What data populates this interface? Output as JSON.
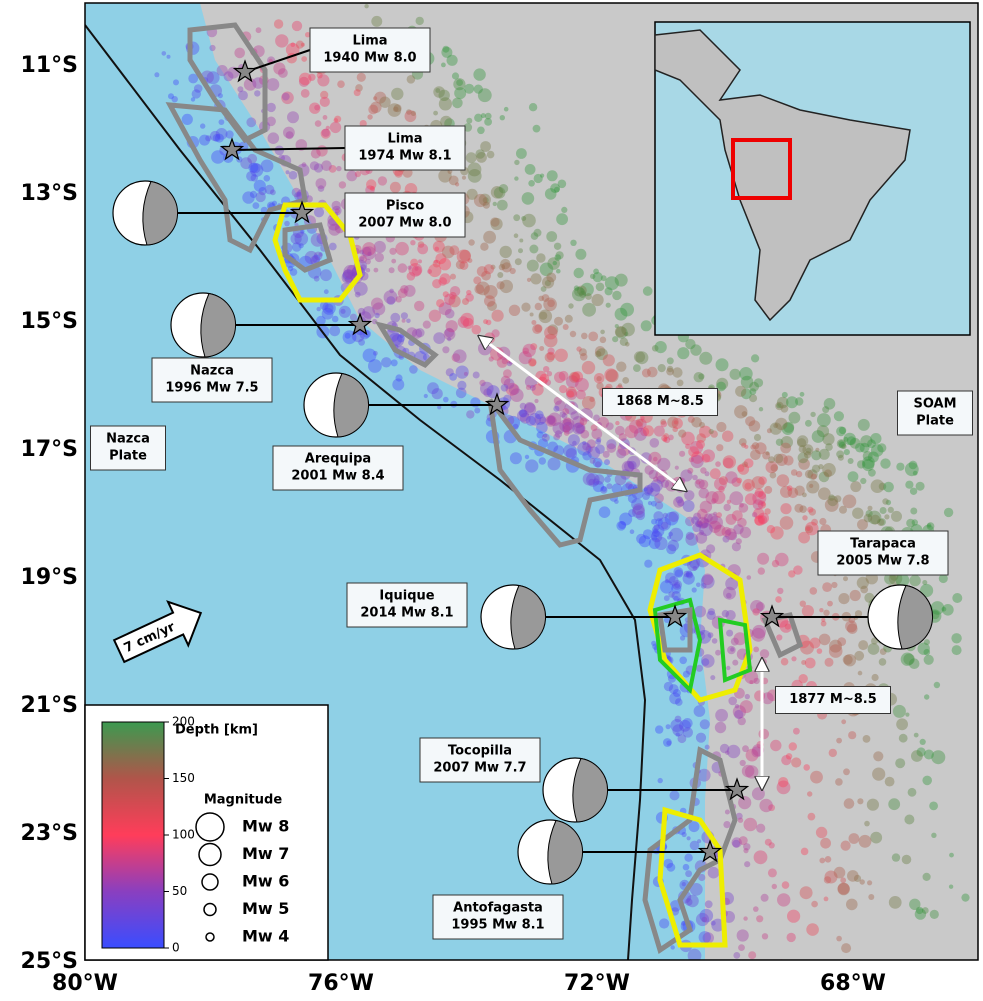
{
  "map": {
    "y_axis_labels": [
      "11°S",
      "13°S",
      "15°S",
      "17°S",
      "19°S",
      "21°S",
      "23°S",
      "25°S"
    ],
    "x_axis_labels": [
      "80°W",
      "76°W",
      "72°W",
      "68°W"
    ],
    "plates": [
      [
        "Nazca",
        "Plate"
      ],
      [
        "SOAM",
        "Plate"
      ]
    ],
    "events": [
      {
        "lines": [
          "Lima",
          "1940 Mw 8.0"
        ]
      },
      {
        "lines": [
          "Lima",
          "1974 Mw 8.1"
        ]
      },
      {
        "lines": [
          "Pisco",
          "2007 Mw 8.0"
        ]
      },
      {
        "lines": [
          "Nazca",
          "1996 Mw 7.5"
        ]
      },
      {
        "lines": [
          "Arequipa",
          "2001 Mw 8.4"
        ]
      },
      {
        "lines": [
          "Iquique",
          "2014 Mw 8.1"
        ]
      },
      {
        "lines": [
          "Tarapaca",
          "2005 Mw 7.8"
        ]
      },
      {
        "lines": [
          "Tocopilla",
          "2007 Mw 7.7"
        ]
      },
      {
        "lines": [
          "Antofagasta",
          "1995 Mw 8.1"
        ]
      }
    ],
    "historical": [
      "1868 M~8.5",
      "1877 M~8.5"
    ],
    "velocity": "7 cm/yr",
    "legend": {
      "depth_title": "Depth [km]",
      "depth_ticks": [
        "200",
        "150",
        "100",
        "50",
        "0"
      ],
      "magnitude_title": "Magnitude",
      "magnitudes": [
        "Mw 8",
        "Mw 7",
        "Mw 6",
        "Mw 5",
        "Mw 4"
      ]
    }
  }
}
